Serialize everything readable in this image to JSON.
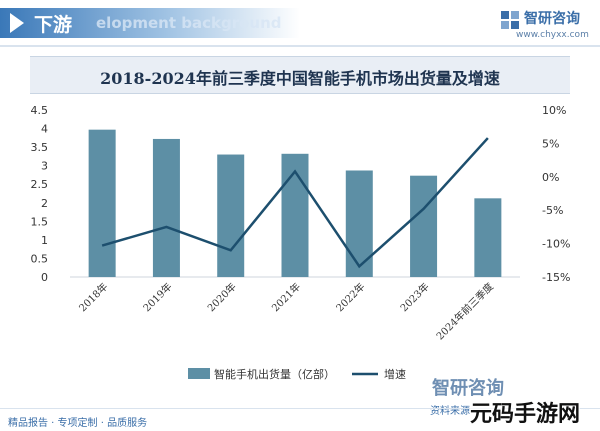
{
  "header": {
    "title": "下游",
    "subtitle": "elopment background",
    "brand_name": "智研咨询",
    "brand_url": "www.chyxx.com"
  },
  "footer": {
    "services": "精品报告 · 专项定制 · 品质服务",
    "source_partial": "资料来源",
    "brand_watermark": "智研咨询",
    "corner_mark": "元码手游网"
  },
  "colors": {
    "bar": "#5d8fa5",
    "line": "#1d4f6e",
    "header_blue": "#3a78b8"
  },
  "chart_data": {
    "type": "bar",
    "title": "2018-2024年前三季度中国智能手机市场出货量及增速",
    "categories": [
      "2018年",
      "2019年",
      "2020年",
      "2021年",
      "2022年",
      "2023年",
      "2024年前三季度"
    ],
    "series": [
      {
        "name": "智能手机出货量（亿部）",
        "type": "bar",
        "axis": "left",
        "values": [
          3.97,
          3.72,
          3.3,
          3.32,
          2.87,
          2.73,
          2.12
        ]
      },
      {
        "name": "增速",
        "type": "line",
        "axis": "right",
        "values": [
          -10.3,
          -7.5,
          -11.0,
          0.8,
          -13.4,
          -4.8,
          5.8
        ]
      }
    ],
    "y_left": {
      "min": 0,
      "max": 4.5,
      "ticks": [
        "0",
        "0.5",
        "1",
        "1.5",
        "2",
        "2.5",
        "3",
        "3.5",
        "4",
        "4.5"
      ]
    },
    "y_right": {
      "min": -15,
      "max": 10,
      "ticks": [
        "-15%",
        "-10%",
        "-5%",
        "0%",
        "5%",
        "10%"
      ]
    },
    "grid": false,
    "legend": "bottom-center"
  }
}
